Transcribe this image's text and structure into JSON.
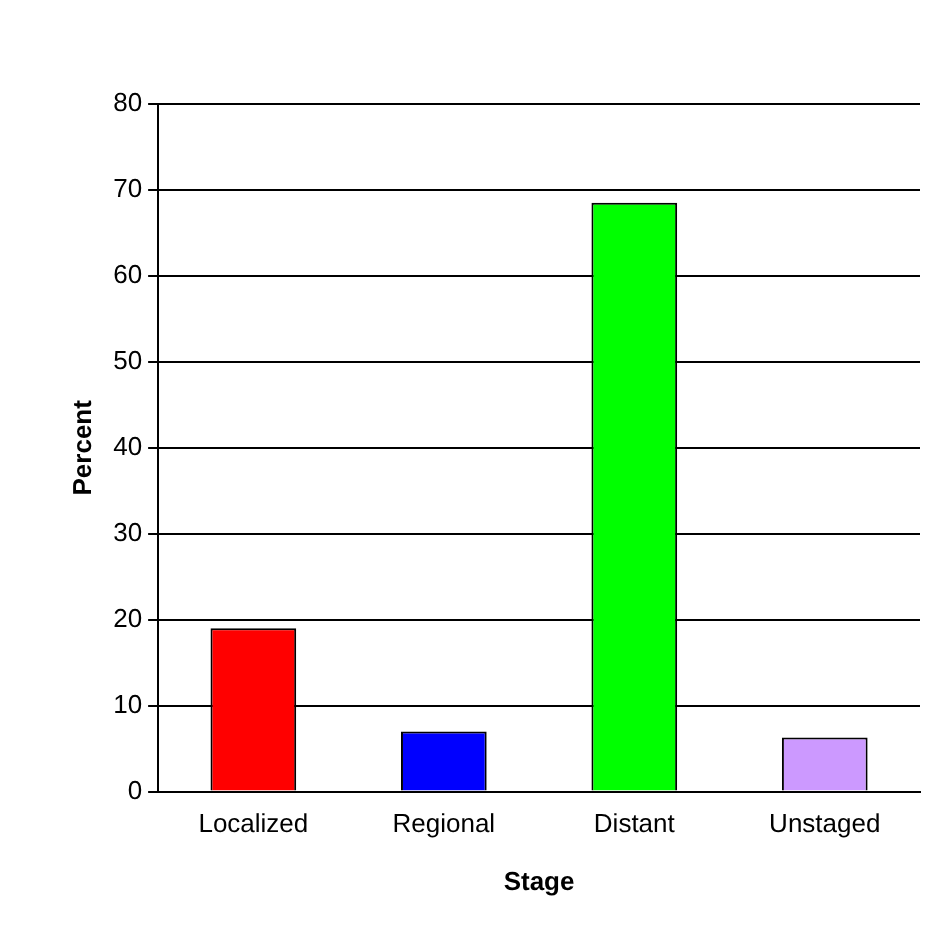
{
  "chart_data": {
    "type": "bar",
    "xlabel": "Stage",
    "ylabel": "Percent",
    "categories": [
      "Localized",
      "Regional",
      "Distant",
      "Unstaged"
    ],
    "colors": [
      "#ff0000",
      "#0000ff",
      "#00ff00",
      "#cc99ff"
    ],
    "values": [
      19,
      7,
      68.5,
      6.3
    ],
    "ylim": [
      0,
      80
    ],
    "yticks": [
      0,
      10,
      20,
      30,
      40,
      50,
      60,
      70,
      80
    ],
    "grid": "y",
    "legend": false
  }
}
